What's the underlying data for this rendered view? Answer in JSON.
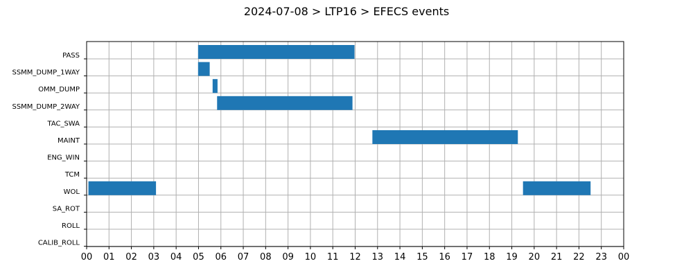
{
  "chart_data": {
    "type": "gantt",
    "title": "2024-07-08 > LTP16 > EFECS events",
    "xlabel": "",
    "ylabel": "",
    "x_unit": "hour",
    "xlim": [
      0,
      24
    ],
    "x_tick_labels": [
      "00",
      "01",
      "02",
      "03",
      "04",
      "05",
      "06",
      "07",
      "08",
      "09",
      "10",
      "11",
      "12",
      "13",
      "14",
      "15",
      "16",
      "17",
      "18",
      "19",
      "20",
      "21",
      "22",
      "23",
      "00"
    ],
    "categories": [
      "PASS",
      "SSMM_DUMP_1WAY",
      "OMM_DUMP",
      "SSMM_DUMP_2WAY",
      "TAC_SWA",
      "MAINT",
      "ENG_WIN",
      "TCM",
      "WOL",
      "SA_ROT",
      "ROLL",
      "CALIB_ROLL"
    ],
    "grid": true,
    "bar_color": "#1f77b4",
    "bars": [
      {
        "category": "PASS",
        "start": 4.98,
        "end": 11.97
      },
      {
        "category": "SSMM_DUMP_1WAY",
        "start": 4.98,
        "end": 5.5
      },
      {
        "category": "OMM_DUMP",
        "start": 5.63,
        "end": 5.85
      },
      {
        "category": "SSMM_DUMP_2WAY",
        "start": 5.83,
        "end": 11.88
      },
      {
        "category": "MAINT",
        "start": 12.77,
        "end": 19.27
      },
      {
        "category": "WOL",
        "start": 0.08,
        "end": 3.1
      },
      {
        "category": "WOL",
        "start": 19.5,
        "end": 22.52
      }
    ]
  }
}
